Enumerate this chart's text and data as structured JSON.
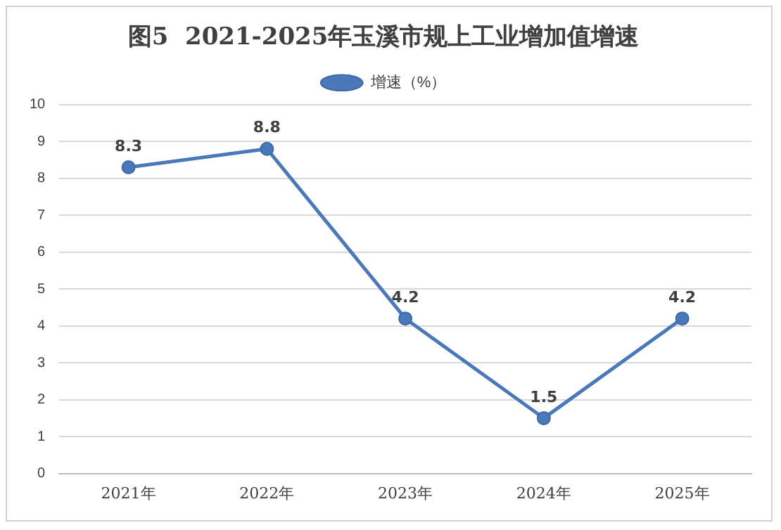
{
  "chart_data": {
    "type": "line",
    "title": "图5  2021-2025年玉溪市规上工业增加值增速",
    "categories": [
      "2021年",
      "2022年",
      "2023年",
      "2024年",
      "2025年"
    ],
    "series": [
      {
        "name": "增速（%）",
        "color": "#4a78b8",
        "values": [
          8.3,
          8.8,
          4.2,
          1.5,
          4.2
        ]
      }
    ],
    "ylim": [
      0,
      10
    ],
    "yticks": [
      0,
      1,
      2,
      3,
      4,
      5,
      6,
      7,
      8,
      9,
      10
    ],
    "grid": "y",
    "legend": "top",
    "marker": "circle",
    "line_style": "solid",
    "data_labels": true
  }
}
